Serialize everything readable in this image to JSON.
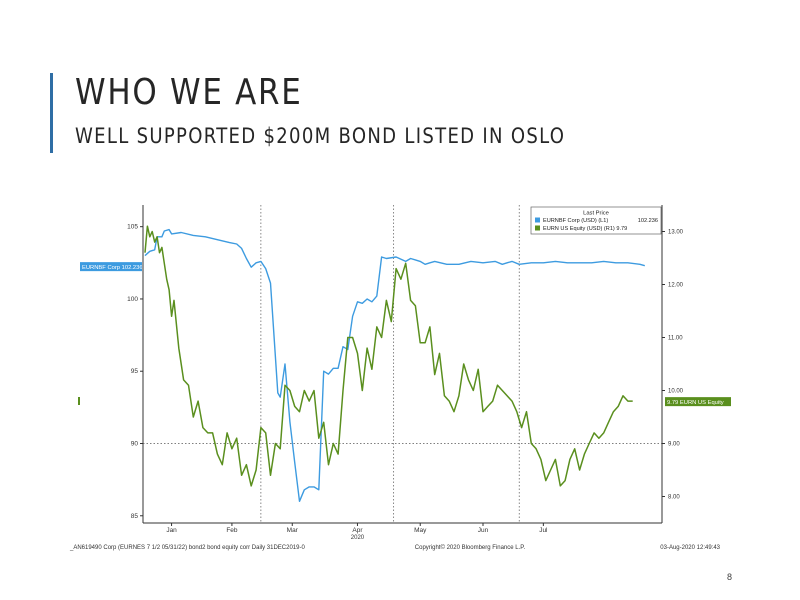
{
  "slide": {
    "title": "WHO WE ARE",
    "subtitle": "WELL SUPPORTED $200M BOND LISTED IN OSLO",
    "page_number": "8"
  },
  "colors": {
    "accent": "#2f6ea5",
    "bond_series": "#3d9be0",
    "equity_series": "#5a8f1e"
  },
  "chart_data": {
    "type": "line",
    "x_labels": [
      "Jan",
      "Feb",
      "Mar",
      "Apr",
      "May",
      "Jun",
      "Jul"
    ],
    "x_year_label": "2020",
    "left_axis": {
      "ticks": [
        "105",
        "100",
        "95",
        "90",
        "85"
      ],
      "ylim": [
        84.5,
        106.5
      ]
    },
    "right_axis": {
      "ticks": [
        "13.00",
        "12.00",
        "11.00",
        "10.00",
        "9.00",
        "8.00"
      ],
      "ylim": [
        7.5,
        13.5
      ]
    },
    "legend": {
      "header": "Last Price",
      "items": [
        {
          "label": "EURNBF Corp (USD) (L1)",
          "value": "102.236",
          "color": "#3d9be0"
        },
        {
          "label": "EURN US Equity (USD) (R1) 9.79",
          "value": "",
          "color": "#5a8f1e"
        }
      ]
    },
    "left_tag": "EURNBF Corp 102.236",
    "right_tag": "9.79 EURN US Equity",
    "series": [
      {
        "name": "EURNBF Corp (USD)",
        "axis": "left",
        "color": "#3d9be0",
        "x": [
          0,
          2,
          4,
          5,
          7,
          8,
          10,
          11,
          15,
          20,
          25,
          30,
          35,
          38,
          40,
          42,
          44,
          46,
          48,
          50,
          52,
          55,
          56,
          58,
          60,
          62,
          64,
          66,
          68,
          70,
          72,
          74,
          76,
          78,
          80,
          82,
          84,
          86,
          88,
          90,
          92,
          94,
          96,
          98,
          100,
          104,
          108,
          110,
          112,
          114,
          116,
          118,
          120,
          125,
          130,
          135,
          140,
          145,
          148,
          150,
          152,
          155,
          160,
          165,
          170,
          175,
          180,
          185,
          190,
          195,
          200,
          205,
          207
        ],
        "y": [
          103,
          103.3,
          103.4,
          104.3,
          104.3,
          104.7,
          104.8,
          104.5,
          104.6,
          104.4,
          104.3,
          104.1,
          103.9,
          103.8,
          103.5,
          102.8,
          102.2,
          102.5,
          102.6,
          102.1,
          101.1,
          93.5,
          93.2,
          95.5,
          91.5,
          88.7,
          86.0,
          86.8,
          87.0,
          87.0,
          86.8,
          95.0,
          94.8,
          95.2,
          95.2,
          96.7,
          96.5,
          98.8,
          99.8,
          99.7,
          100.0,
          99.8,
          100.2,
          102.9,
          102.8,
          102.9,
          102.6,
          102.8,
          102.7,
          102.6,
          102.4,
          102.5,
          102.6,
          102.4,
          102.4,
          102.6,
          102.5,
          102.6,
          102.4,
          102.5,
          102.6,
          102.4,
          102.5,
          102.5,
          102.6,
          102.5,
          102.5,
          102.5,
          102.6,
          102.5,
          102.5,
          102.4,
          102.3
        ]
      },
      {
        "name": "EURN US Equity (USD)",
        "axis": "right",
        "color": "#5a8f1e",
        "x": [
          0,
          1,
          2,
          3,
          4,
          5,
          6,
          7,
          8,
          9,
          10,
          11,
          12,
          14,
          16,
          18,
          20,
          22,
          24,
          26,
          28,
          30,
          32,
          34,
          36,
          38,
          40,
          42,
          44,
          46,
          48,
          50,
          52,
          54,
          56,
          58,
          60,
          62,
          64,
          66,
          68,
          70,
          72,
          74,
          76,
          78,
          80,
          82,
          84,
          86,
          88,
          90,
          92,
          94,
          96,
          98,
          100,
          102,
          104,
          106,
          108,
          110,
          112,
          114,
          116,
          118,
          120,
          122,
          124,
          126,
          128,
          130,
          132,
          134,
          136,
          138,
          140,
          142,
          144,
          146,
          148,
          150,
          152,
          154,
          156,
          158,
          160,
          162,
          164,
          166,
          168,
          170,
          172,
          174,
          176,
          178,
          180,
          182,
          184,
          186,
          188,
          190,
          192,
          194,
          196,
          198,
          200,
          202
        ],
        "y": [
          12.6,
          13.1,
          12.9,
          13.0,
          12.8,
          12.9,
          12.6,
          12.7,
          12.4,
          12.1,
          11.9,
          11.4,
          11.7,
          10.8,
          10.2,
          10.1,
          9.5,
          9.8,
          9.3,
          9.2,
          9.2,
          8.8,
          8.6,
          9.2,
          8.9,
          9.1,
          8.4,
          8.6,
          8.2,
          8.5,
          9.3,
          9.2,
          8.4,
          9.0,
          8.9,
          10.1,
          10.0,
          9.7,
          9.6,
          10.0,
          9.8,
          10.0,
          9.1,
          9.4,
          8.6,
          9.0,
          8.8,
          10.0,
          11.0,
          11.0,
          10.7,
          10.0,
          10.8,
          10.4,
          11.2,
          11.0,
          11.7,
          11.3,
          12.3,
          12.1,
          12.4,
          11.7,
          11.6,
          10.9,
          10.9,
          11.2,
          10.3,
          10.7,
          9.9,
          9.8,
          9.6,
          9.9,
          10.5,
          10.2,
          10.0,
          10.4,
          9.6,
          9.7,
          9.8,
          10.1,
          10.0,
          9.9,
          9.8,
          9.6,
          9.3,
          9.6,
          9.0,
          8.9,
          8.7,
          8.3,
          8.5,
          8.7,
          8.2,
          8.3,
          8.7,
          8.9,
          8.5,
          8.8,
          9.0,
          9.2,
          9.1,
          9.2,
          9.4,
          9.6,
          9.7,
          9.9,
          9.8,
          9.8
        ]
      }
    ],
    "footer_left": "_AN619490 Corp (EURNES 7 1/2 05/31/22) bond2 bond equity corr  Daily 31DEC2019-0",
    "footer_center": "Copyright© 2020 Bloomberg Finance L.P.",
    "footer_right": "03-Aug-2020 12:49:43",
    "grid": true
  }
}
